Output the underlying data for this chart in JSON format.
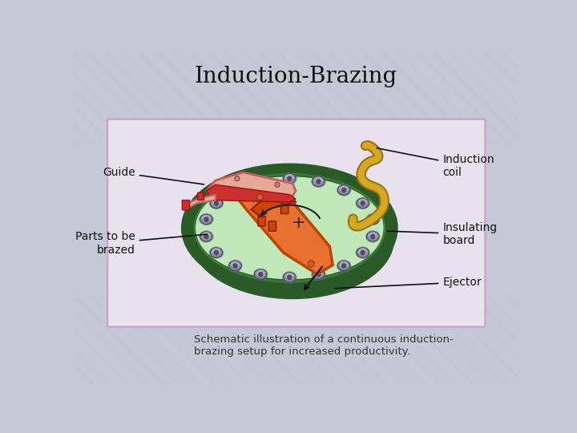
{
  "title": "Induction-Brazing",
  "caption": "Schematic illustration of a continuous induction-\nbrazing setup for increased productivity.",
  "bg_color": "#c5c8d5",
  "box_bg": "#e8e2ef",
  "box_edge": "#c8a0c8",
  "title_fontsize": 20,
  "caption_fontsize": 9.5,
  "colors": {
    "disk_green": "#c0e8b8",
    "disk_rim_dark": "#2a5a28",
    "disk_rim_mid": "#3a7a38",
    "disk_side": "#4a7a40",
    "guide_pink": "#e8a898",
    "guide_red": "#cc3030",
    "guide_arm": "#e09080",
    "orange_part": "#e87030",
    "orange_dark": "#cc4400",
    "coil": "#d4a820",
    "coil_dark": "#a07010",
    "bolt_grey": "#8888a0",
    "bolt_light": "#b0b0cc",
    "bolt_dark": "#606070"
  },
  "labels": {
    "guide": "Guide",
    "parts": "Parts to be\nbrazed",
    "induction_coil": "Induction\ncoil",
    "insulating_board": "Insulating\nboard",
    "ejector": "Ejector"
  }
}
